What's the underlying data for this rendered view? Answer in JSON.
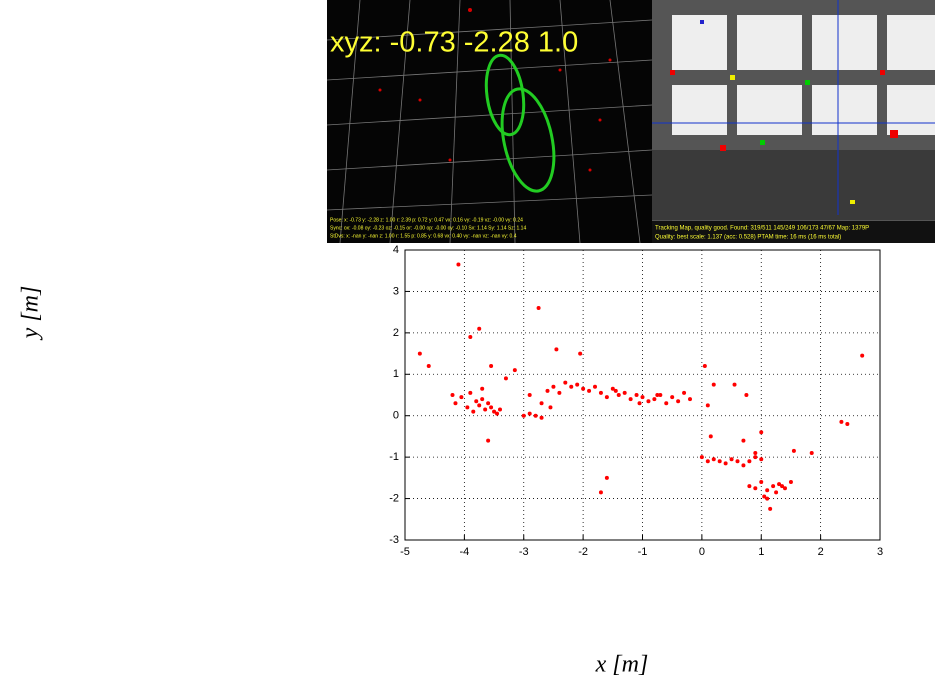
{
  "screens": {
    "left": {
      "big_text": "xyz: -0.73 -2.28 1.0",
      "lines": [
        "Pose:    x: -0.73  y: -2.28  z: 1.00  r: 2.39  p: 0.72  y: 0.47  vx: 0.16  vy: -0.19  vz: -0.00  vy: 0.24",
        "Sync:   ox: -0.08  oy: -0.23  oz: -0.15  or: -0.00  op: -0.00  oy: -0.10  Sx: 1.14  Sy: 1.14  Sz: 1.14",
        "StDvs:  x: -nan  y: -nan  z: 1.00  r: 1.55  p: 0.85  y: 0.68  vx: 0.40  vy: -nan  vz: -nan  vy: 0.4"
      ]
    },
    "right": {
      "lines": [
        "Tracking Map, quality good. Found: 319/511  145/249  106/173  47/67  Map: 1379P",
        "Quality: best        scale: 1.137 (acc: 0.528)       PTAM time: 16 ms  (16 ms total)"
      ]
    }
  },
  "chart_data": {
    "type": "scatter",
    "color": "#ff0000",
    "grid": true,
    "x_label": "x [m]",
    "y_label": "y [m]",
    "xlim": [
      -5,
      3
    ],
    "ylim": [
      -3,
      4
    ],
    "xticks": [
      -5,
      -4,
      -3,
      -2,
      -1,
      0,
      1,
      2,
      3
    ],
    "yticks": [
      -3,
      -2,
      -1,
      0,
      1,
      2,
      3,
      4
    ],
    "x": [
      -4.1,
      -3.9,
      -3.75,
      -2.75,
      -4.75,
      -4.6,
      -2.45,
      -2.05,
      2.7,
      2.35,
      2.45,
      -1.6,
      -1.7,
      1.85,
      1.55,
      0.2,
      0.55,
      -3.55,
      -3.3,
      -3.15,
      1.15,
      -4.05,
      -3.95,
      -3.9,
      -3.85,
      -3.8,
      -3.75,
      -3.7,
      -3.65,
      -3.6,
      -3.55,
      -3.5,
      -3.45,
      -3.4,
      -4.2,
      -4.15,
      -3.6,
      -3.7,
      -3.0,
      -2.9,
      -2.8,
      -2.7,
      -2.6,
      -2.5,
      -2.4,
      -2.3,
      -2.2,
      -2.1,
      -2.0,
      -2.9,
      -2.7,
      -2.55,
      -1.9,
      -1.8,
      -1.7,
      -1.6,
      -1.5,
      -1.4,
      -1.3,
      -1.2,
      -1.1,
      -1.0,
      -0.9,
      -0.8,
      -0.7,
      -0.6,
      -0.5,
      -0.4,
      -0.3,
      -0.2,
      -1.45,
      -1.05,
      -0.75,
      0.0,
      0.1,
      0.2,
      0.3,
      0.4,
      0.5,
      0.6,
      0.7,
      0.8,
      0.9,
      1.0,
      0.15,
      0.75,
      0.7,
      0.9,
      1.0,
      0.8,
      0.9,
      1.0,
      1.1,
      1.2,
      1.3,
      1.4,
      1.5,
      1.05,
      1.25,
      1.35,
      1.1,
      0.05,
      0.1
    ],
    "y": [
      3.65,
      1.9,
      2.1,
      2.6,
      1.5,
      1.2,
      1.6,
      1.5,
      1.45,
      -0.15,
      -0.2,
      -1.5,
      -1.85,
      -0.9,
      -0.85,
      0.75,
      0.75,
      1.2,
      0.9,
      1.1,
      -2.25,
      0.45,
      0.2,
      0.55,
      0.1,
      0.35,
      0.25,
      0.4,
      0.15,
      0.3,
      0.2,
      0.1,
      0.05,
      0.15,
      0.5,
      0.3,
      -0.6,
      0.65,
      0.0,
      0.05,
      0.0,
      0.3,
      0.6,
      0.7,
      0.55,
      0.8,
      0.7,
      0.75,
      0.65,
      0.5,
      -0.05,
      0.2,
      0.6,
      0.7,
      0.55,
      0.45,
      0.65,
      0.5,
      0.55,
      0.4,
      0.5,
      0.45,
      0.35,
      0.4,
      0.5,
      0.3,
      0.45,
      0.35,
      0.55,
      0.4,
      0.6,
      0.3,
      0.5,
      -1.0,
      -1.1,
      -1.05,
      -1.1,
      -1.15,
      -1.05,
      -1.1,
      -1.2,
      -1.1,
      -1.0,
      -1.05,
      -0.5,
      0.5,
      -0.6,
      -0.9,
      -0.4,
      -1.7,
      -1.75,
      -1.6,
      -1.8,
      -1.7,
      -1.65,
      -1.75,
      -1.6,
      -1.95,
      -1.85,
      -1.7,
      -2.0,
      1.2,
      0.25
    ]
  }
}
